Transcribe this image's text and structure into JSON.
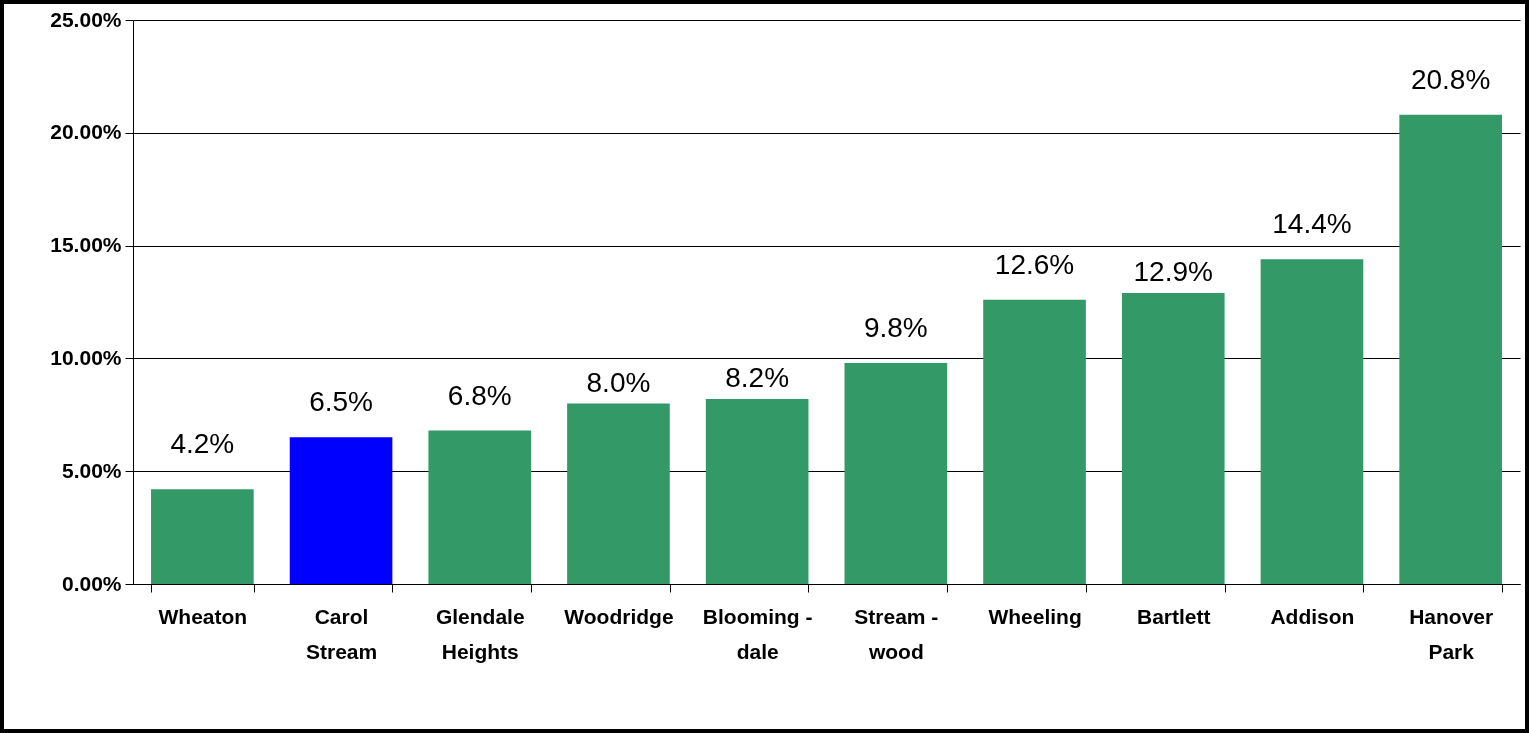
{
  "chart_data": {
    "type": "bar",
    "categories": [
      "Wheaton",
      "Carol Stream",
      "Glendale Heights",
      "Woodridge",
      "Blooming - dale",
      "Stream - wood",
      "Wheeling",
      "Bartlett",
      "Addison",
      "Hanover Park"
    ],
    "values": [
      4.2,
      6.5,
      6.8,
      8.0,
      8.2,
      9.8,
      12.6,
      12.9,
      14.4,
      20.8
    ],
    "colors": [
      "#339966",
      "#0000ff",
      "#339966",
      "#339966",
      "#339966",
      "#339966",
      "#339966",
      "#339966",
      "#339966",
      "#339966"
    ],
    "value_labels": [
      "4.2%",
      "6.5%",
      "6.8%",
      "8.0%",
      "8.2%",
      "9.8%",
      "12.6%",
      "12.9%",
      "14.4%",
      "20.8%"
    ],
    "ylim": [
      0,
      25
    ],
    "yticks": [
      {
        "value": 0,
        "label": "0.00%"
      },
      {
        "value": 5,
        "label": "5.00%"
      },
      {
        "value": 10,
        "label": "10.00%"
      },
      {
        "value": 15,
        "label": "15.00%"
      },
      {
        "value": 20,
        "label": "20.00%"
      },
      {
        "value": 25,
        "label": "25.00%"
      }
    ],
    "grid": "y"
  }
}
